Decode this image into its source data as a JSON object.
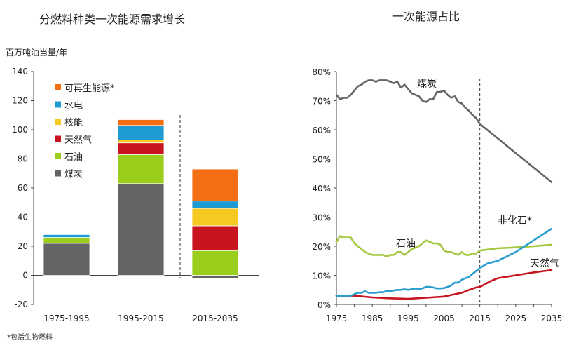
{
  "colors": {
    "coal": "#646464",
    "oil": "#9acd1c",
    "gas": "#c8141e",
    "nuclear": "#f5c822",
    "hydro": "#1e9bd2",
    "renewables": "#f46e14",
    "axis": "#444444",
    "grid": "#ffffff",
    "line_coal": "#646464",
    "line_oil": "#a5c840",
    "line_gas": "#c8141e",
    "line_nonfossil": "#2a9dcf"
  },
  "chart_data": [
    {
      "type": "bar",
      "stacked": true,
      "title": "分燃料种类一次能源需求增长",
      "ylabel": "百万吨油当量/年",
      "xlabel": "",
      "ylim": [
        -20,
        140
      ],
      "yticks": [
        "-20",
        "0",
        "20",
        "40",
        "60",
        "80",
        "100",
        "120",
        "140"
      ],
      "categories": [
        "1975-1995",
        "1995-2015",
        "2015-2035"
      ],
      "series": [
        {
          "key": "coal",
          "name": "煤炭",
          "values": [
            22,
            63,
            -2
          ]
        },
        {
          "key": "oil",
          "name": "石油",
          "values": [
            4,
            20,
            17
          ]
        },
        {
          "key": "gas",
          "name": "天然气",
          "values": [
            0,
            8,
            17
          ]
        },
        {
          "key": "nuclear",
          "name": "核能",
          "values": [
            0,
            2,
            12
          ]
        },
        {
          "key": "hydro",
          "name": "水电",
          "values": [
            2,
            10,
            5
          ]
        },
        {
          "key": "renewables",
          "name": "可再生能源*",
          "values": [
            0,
            4,
            22
          ]
        }
      ],
      "legend_order": [
        "renewables",
        "hydro",
        "nuclear",
        "gas",
        "oil",
        "coal"
      ],
      "divider_between": [
        "1995-2015",
        "2015-2035"
      ],
      "footnote": "*包括生物燃料"
    },
    {
      "type": "line",
      "title": "一次能源占比",
      "xlim": [
        1975,
        2035
      ],
      "ylim": [
        0,
        80
      ],
      "xticks": [
        "1975",
        "1985",
        "1995",
        "2005",
        "2015",
        "2025",
        "2035"
      ],
      "yticks": [
        "0%",
        "10%",
        "20%",
        "30%",
        "40%",
        "50%",
        "60%",
        "70%",
        "80%"
      ],
      "projection_start": 2015,
      "series": [
        {
          "key": "coal",
          "name": "煤炭",
          "x": [
            1975,
            1976,
            1977,
            1978,
            1979,
            1980,
            1981,
            1982,
            1983,
            1984,
            1985,
            1986,
            1987,
            1988,
            1989,
            1990,
            1991,
            1992,
            1993,
            1994,
            1995,
            1996,
            1997,
            1998,
            1999,
            2000,
            2001,
            2002,
            2003,
            2004,
            2005,
            2006,
            2007,
            2008,
            2009,
            2010,
            2011,
            2012,
            2013,
            2014,
            2015,
            2020,
            2025,
            2030,
            2035
          ],
          "y": [
            72,
            70.5,
            71,
            71,
            72,
            73.5,
            75,
            75.5,
            76.5,
            77,
            77,
            76.5,
            77,
            77,
            77,
            76.5,
            76,
            76.5,
            74.5,
            75.5,
            74,
            72.5,
            72,
            71.5,
            70,
            69.5,
            70.5,
            70.5,
            73,
            73,
            73.5,
            72,
            71,
            71.5,
            69.5,
            69,
            67.5,
            66.5,
            65,
            64,
            62,
            57,
            52,
            47,
            42
          ]
        },
        {
          "key": "oil",
          "name": "石油",
          "x": [
            1975,
            1976,
            1977,
            1978,
            1979,
            1980,
            1981,
            1982,
            1983,
            1984,
            1985,
            1986,
            1987,
            1988,
            1989,
            1990,
            1991,
            1992,
            1993,
            1994,
            1995,
            1996,
            1997,
            1998,
            1999,
            2000,
            2001,
            2002,
            2003,
            2004,
            2005,
            2006,
            2007,
            2008,
            2009,
            2010,
            2011,
            2012,
            2013,
            2014,
            2015,
            2020,
            2025,
            2030,
            2035
          ],
          "y": [
            21.5,
            23.5,
            23,
            23,
            23,
            21,
            20,
            19,
            18,
            17.5,
            17,
            17,
            17,
            17,
            16.5,
            17,
            17,
            18,
            18,
            17,
            18,
            19,
            19.5,
            20,
            21,
            22,
            21.5,
            21,
            21,
            20.5,
            18.5,
            18,
            18,
            17.5,
            17,
            18,
            17,
            17,
            17.5,
            17.5,
            18.5,
            19.3,
            19.6,
            20,
            20.5
          ]
        },
        {
          "key": "gas",
          "name": "天然气",
          "x": [
            1975,
            1980,
            1985,
            1990,
            1995,
            2000,
            2005,
            2008,
            2010,
            2012,
            2014,
            2015,
            2018,
            2020,
            2025,
            2030,
            2035
          ],
          "y": [
            3,
            3,
            2.4,
            2.1,
            1.9,
            2.3,
            2.7,
            3.5,
            4,
            5,
            5.8,
            6,
            8,
            9,
            10,
            11,
            11.8
          ]
        },
        {
          "key": "nonfossil",
          "name": "非化石*",
          "x": [
            1975,
            1976,
            1977,
            1978,
            1979,
            1980,
            1981,
            1982,
            1983,
            1984,
            1985,
            1986,
            1987,
            1988,
            1989,
            1990,
            1991,
            1992,
            1993,
            1994,
            1995,
            1996,
            1997,
            1998,
            1999,
            2000,
            2001,
            2002,
            2003,
            2004,
            2005,
            2006,
            2007,
            2008,
            2009,
            2010,
            2011,
            2012,
            2013,
            2014,
            2015,
            2017,
            2020,
            2025,
            2030,
            2035
          ],
          "y": [
            3,
            3,
            3,
            3,
            3,
            3.5,
            4,
            4,
            4.5,
            4,
            4,
            4,
            4.2,
            4.2,
            4.5,
            4.5,
            4.8,
            5,
            5,
            5.2,
            5,
            5.2,
            5.5,
            5.3,
            5.5,
            6,
            6,
            5.8,
            5.5,
            5.5,
            5.6,
            6,
            6.5,
            7.5,
            7.5,
            8.5,
            9,
            9.5,
            10.5,
            11.5,
            12.5,
            14,
            15,
            18,
            22,
            26
          ]
        }
      ],
      "labels": [
        {
          "key": "coal",
          "text": "煤炭"
        },
        {
          "key": "oil",
          "text": "石油"
        },
        {
          "key": "nonfossil",
          "text": "非化石*"
        },
        {
          "key": "gas",
          "text": "天然气"
        }
      ]
    }
  ]
}
